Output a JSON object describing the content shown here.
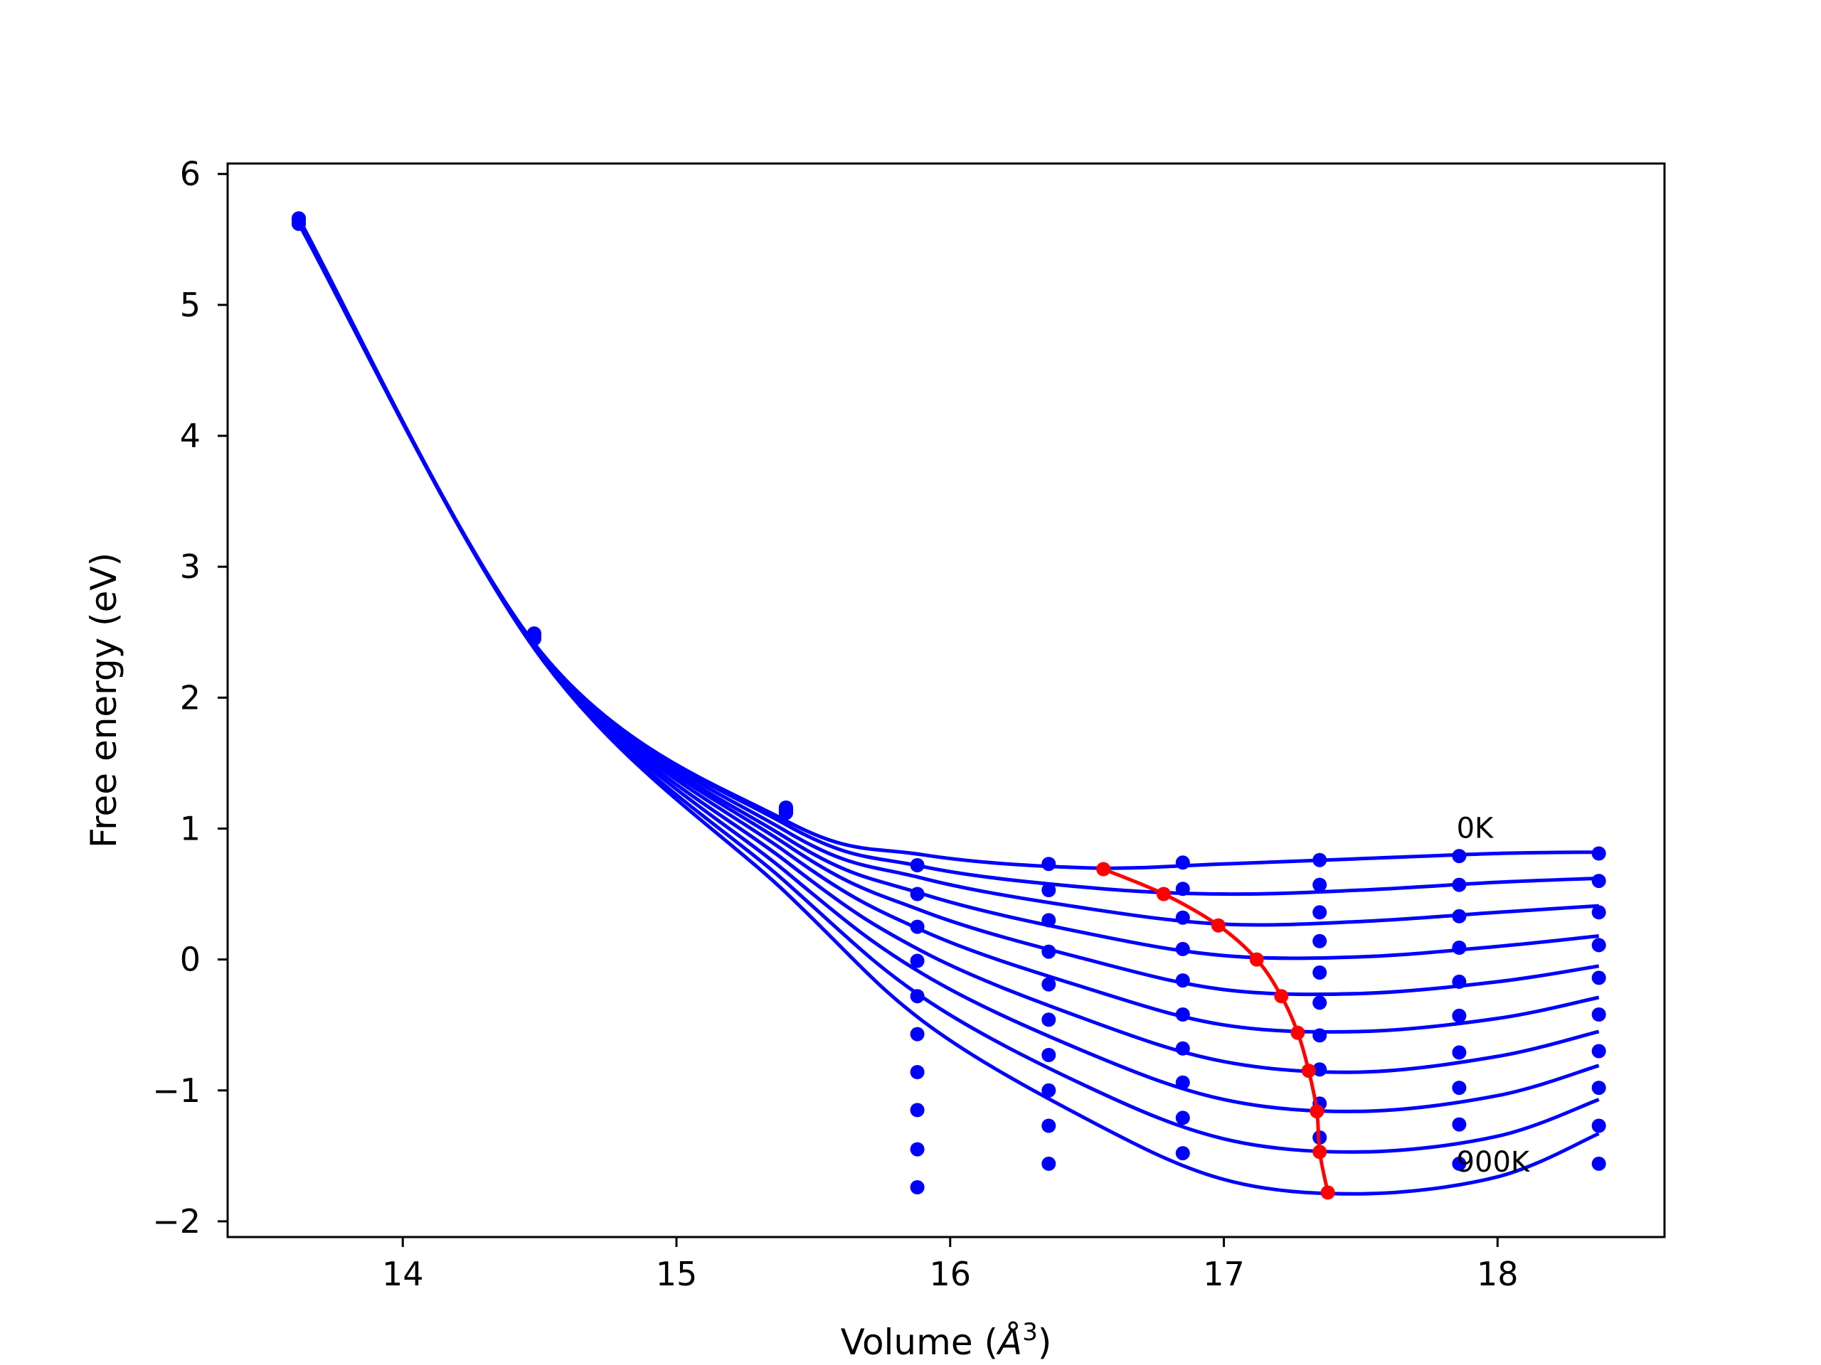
{
  "chart_data": {
    "type": "line",
    "title": "",
    "xlabel": "Volume (Å³)",
    "ylabel": "Free energy (eV)",
    "xlim": [
      13.36,
      18.61
    ],
    "ylim": [
      -2.12,
      6.08
    ],
    "xticks": [
      "14",
      "15",
      "16",
      "17",
      "18"
    ],
    "yticks": [
      "−2",
      "−1",
      "0",
      "1",
      "2",
      "3",
      "4",
      "5",
      "6"
    ],
    "xtick_values": [
      14,
      15,
      16,
      17,
      18
    ],
    "ytick_values": [
      -2,
      -1,
      0,
      1,
      2,
      3,
      4,
      5,
      6
    ],
    "grid": false,
    "legend": "none",
    "annotations": [
      {
        "text": "0K",
        "x": 17.85,
        "y": 0.93
      },
      {
        "text": "900K",
        "x": 17.85,
        "y": -1.62
      }
    ],
    "curve_color": "#0000ff",
    "min_curve_color": "#ff0000",
    "volumes": [
      13.62,
      14.48,
      15.4,
      15.88,
      16.36,
      16.85,
      17.35,
      17.86,
      18.37
    ],
    "isotherms": [
      {
        "T": "0K",
        "values": [
          5.66,
          2.49,
          1.16,
          0.72,
          0.73,
          0.74,
          0.76,
          0.79,
          0.81
        ]
      },
      {
        "T": "100K",
        "values": [
          5.66,
          2.49,
          1.16,
          0.5,
          0.53,
          0.54,
          0.57,
          0.57,
          0.6
        ]
      },
      {
        "T": "200K",
        "values": [
          5.65,
          2.48,
          1.15,
          0.25,
          0.3,
          0.32,
          0.36,
          0.33,
          0.36
        ]
      },
      {
        "T": "300K",
        "values": [
          5.65,
          2.48,
          1.15,
          -0.01,
          0.06,
          0.08,
          0.14,
          0.09,
          0.11
        ]
      },
      {
        "T": "400K",
        "values": [
          5.64,
          2.47,
          1.14,
          -0.28,
          -0.19,
          -0.16,
          -0.1,
          -0.17,
          -0.14
        ]
      },
      {
        "T": "500K",
        "values": [
          5.64,
          2.47,
          1.14,
          -0.57,
          -0.46,
          -0.42,
          -0.33,
          -0.43,
          -0.42
        ]
      },
      {
        "T": "600K",
        "values": [
          5.63,
          2.46,
          1.13,
          -0.86,
          -0.73,
          -0.68,
          -0.58,
          -0.71,
          -0.7
        ]
      },
      {
        "T": "700K",
        "values": [
          5.63,
          2.46,
          1.13,
          -1.15,
          -1.0,
          -0.94,
          -0.84,
          -0.98,
          -0.98
        ]
      },
      {
        "T": "800K",
        "values": [
          5.62,
          2.45,
          1.12,
          -1.45,
          -1.27,
          -1.21,
          -1.1,
          -1.26,
          -1.27
        ]
      },
      {
        "T": "900K",
        "values": [
          5.62,
          2.45,
          1.12,
          -1.74,
          -1.56,
          -1.48,
          -1.36,
          -1.56,
          -1.56
        ]
      }
    ],
    "fit_curves": [
      {
        "T": "0K",
        "x": [
          13.62,
          14.5,
          15.4,
          15.9,
          16.5,
          17.0,
          17.5,
          18.0,
          18.37
        ],
        "y": [
          5.66,
          2.36,
          1.06,
          0.8,
          0.7,
          0.73,
          0.77,
          0.81,
          0.82
        ]
      },
      {
        "T": "100K",
        "x": [
          13.62,
          14.5,
          15.4,
          15.9,
          16.5,
          17.0,
          17.5,
          18.0,
          18.37
        ],
        "y": [
          5.66,
          2.36,
          1.03,
          0.71,
          0.55,
          0.5,
          0.53,
          0.59,
          0.62
        ]
      },
      {
        "T": "200K",
        "x": [
          13.62,
          14.5,
          15.4,
          15.9,
          16.5,
          17.0,
          17.5,
          18.0,
          18.37
        ],
        "y": [
          5.65,
          2.36,
          0.98,
          0.62,
          0.39,
          0.27,
          0.29,
          0.36,
          0.41
        ]
      },
      {
        "T": "300K",
        "x": [
          13.62,
          14.5,
          15.4,
          15.9,
          16.5,
          17.0,
          17.5,
          18.0,
          18.37
        ],
        "y": [
          5.65,
          2.35,
          0.93,
          0.5,
          0.2,
          0.03,
          0.02,
          0.1,
          0.18
        ]
      },
      {
        "T": "400K",
        "x": [
          13.62,
          14.5,
          15.4,
          15.9,
          16.5,
          17.0,
          17.5,
          18.0,
          18.37
        ],
        "y": [
          5.65,
          2.35,
          0.88,
          0.37,
          0.0,
          -0.23,
          -0.26,
          -0.17,
          -0.05
        ]
      },
      {
        "T": "500K",
        "x": [
          13.62,
          14.5,
          15.4,
          15.9,
          16.5,
          17.0,
          17.5,
          18.0,
          18.37
        ],
        "y": [
          5.64,
          2.34,
          0.82,
          0.22,
          -0.22,
          -0.5,
          -0.55,
          -0.45,
          -0.29
        ]
      },
      {
        "T": "600K",
        "x": [
          13.62,
          14.5,
          15.4,
          15.9,
          16.5,
          17.0,
          17.5,
          18.0,
          18.37
        ],
        "y": [
          5.64,
          2.33,
          0.75,
          0.06,
          -0.46,
          -0.78,
          -0.86,
          -0.74,
          -0.55
        ]
      },
      {
        "T": "700K",
        "x": [
          13.62,
          14.5,
          15.4,
          15.9,
          16.5,
          17.0,
          17.5,
          18.0,
          18.37
        ],
        "y": [
          5.63,
          2.33,
          0.67,
          -0.11,
          -0.71,
          -1.07,
          -1.16,
          -1.04,
          -0.81
        ]
      },
      {
        "T": "800K",
        "x": [
          13.62,
          14.5,
          15.4,
          15.9,
          16.5,
          17.0,
          17.5,
          18.0,
          18.37
        ],
        "y": [
          5.63,
          2.32,
          0.59,
          -0.29,
          -0.97,
          -1.37,
          -1.47,
          -1.35,
          -1.07
        ]
      },
      {
        "T": "900K",
        "x": [
          13.62,
          14.5,
          15.4,
          15.9,
          16.5,
          17.0,
          17.5,
          18.0,
          18.37
        ],
        "y": [
          5.62,
          2.32,
          0.51,
          -0.47,
          -1.22,
          -1.68,
          -1.79,
          -1.66,
          -1.33
        ]
      }
    ],
    "minimum_curve": {
      "x": [
        16.56,
        16.78,
        16.98,
        17.12,
        17.21,
        17.27,
        17.31,
        17.34,
        17.35,
        17.38
      ],
      "y": [
        0.69,
        0.5,
        0.26,
        0.0,
        -0.28,
        -0.56,
        -0.85,
        -1.16,
        -1.47,
        -1.78
      ]
    }
  }
}
